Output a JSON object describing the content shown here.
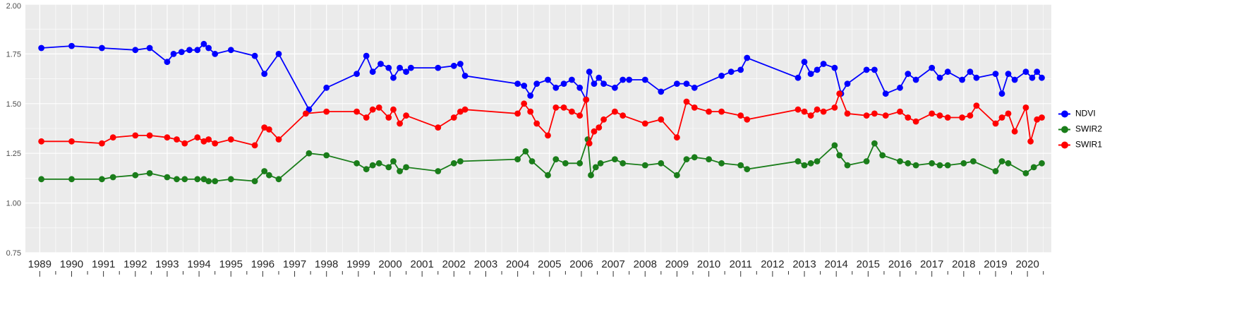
{
  "legend": {
    "items": [
      {
        "label": "NDVI",
        "color": "#0000FF"
      },
      {
        "label": "SWIR2",
        "color": "#1A7D1A"
      },
      {
        "label": "SWIR1",
        "color": "#FF0000"
      }
    ]
  },
  "chart_data": {
    "type": "line",
    "title": "",
    "xlabel": "",
    "ylabel": "",
    "x_ticks": [
      1989,
      1990,
      1991,
      1992,
      1993,
      1994,
      1995,
      1996,
      1997,
      1998,
      1999,
      2000,
      2001,
      2002,
      2003,
      2004,
      2005,
      2006,
      2007,
      2008,
      2009,
      2010,
      2011,
      2012,
      2013,
      2014,
      2015,
      2016,
      2017,
      2018,
      2019,
      2020
    ],
    "y_ticks": [
      0.75,
      1.0,
      1.25,
      1.5,
      1.75,
      2.0
    ],
    "ylim": [
      0.75,
      2.0
    ],
    "xlim": [
      1988.55,
      2020.75
    ],
    "grid": true,
    "legend_position": "right",
    "panel_color": "#EBEBEB",
    "grid_color": "#FFFFFF",
    "axis_text_color": "#4D4D4D",
    "x_label_color": "#262626",
    "series": [
      {
        "name": "NDVI",
        "color": "#0000FF",
        "points": [
          [
            1989.05,
            1.78
          ],
          [
            1990.0,
            1.79
          ],
          [
            1990.95,
            1.78
          ],
          [
            1992.0,
            1.77
          ],
          [
            1992.45,
            1.78
          ],
          [
            1993.0,
            1.71
          ],
          [
            1993.2,
            1.75
          ],
          [
            1993.45,
            1.76
          ],
          [
            1993.7,
            1.77
          ],
          [
            1993.95,
            1.77
          ],
          [
            1994.15,
            1.8
          ],
          [
            1994.3,
            1.78
          ],
          [
            1994.5,
            1.75
          ],
          [
            1995.0,
            1.77
          ],
          [
            1995.75,
            1.74
          ],
          [
            1996.05,
            1.65
          ],
          [
            1996.5,
            1.75
          ],
          [
            1997.45,
            1.47
          ],
          [
            1998.0,
            1.58
          ],
          [
            1998.95,
            1.65
          ],
          [
            1999.25,
            1.74
          ],
          [
            1999.45,
            1.66
          ],
          [
            1999.7,
            1.7
          ],
          [
            1999.95,
            1.68
          ],
          [
            2000.1,
            1.63
          ],
          [
            2000.3,
            1.68
          ],
          [
            2000.5,
            1.66
          ],
          [
            2000.65,
            1.68
          ],
          [
            2001.5,
            1.68
          ],
          [
            2002.0,
            1.69
          ],
          [
            2002.2,
            1.7
          ],
          [
            2002.35,
            1.64
          ],
          [
            2004.0,
            1.6
          ],
          [
            2004.2,
            1.59
          ],
          [
            2004.4,
            1.54
          ],
          [
            2004.6,
            1.6
          ],
          [
            2004.95,
            1.62
          ],
          [
            2005.2,
            1.58
          ],
          [
            2005.45,
            1.6
          ],
          [
            2005.7,
            1.62
          ],
          [
            2005.95,
            1.58
          ],
          [
            2006.15,
            1.52
          ],
          [
            2006.25,
            1.66
          ],
          [
            2006.4,
            1.6
          ],
          [
            2006.55,
            1.63
          ],
          [
            2006.7,
            1.6
          ],
          [
            2007.05,
            1.58
          ],
          [
            2007.3,
            1.62
          ],
          [
            2007.5,
            1.62
          ],
          [
            2008.0,
            1.62
          ],
          [
            2008.5,
            1.56
          ],
          [
            2009.0,
            1.6
          ],
          [
            2009.3,
            1.6
          ],
          [
            2009.55,
            1.58
          ],
          [
            2010.4,
            1.64
          ],
          [
            2010.7,
            1.66
          ],
          [
            2011.0,
            1.67
          ],
          [
            2011.2,
            1.73
          ],
          [
            2012.8,
            1.63
          ],
          [
            2013.0,
            1.71
          ],
          [
            2013.2,
            1.65
          ],
          [
            2013.4,
            1.67
          ],
          [
            2013.6,
            1.7
          ],
          [
            2013.95,
            1.68
          ],
          [
            2014.15,
            1.55
          ],
          [
            2014.35,
            1.6
          ],
          [
            2014.95,
            1.67
          ],
          [
            2015.2,
            1.67
          ],
          [
            2015.55,
            1.55
          ],
          [
            2016.0,
            1.58
          ],
          [
            2016.25,
            1.65
          ],
          [
            2016.5,
            1.62
          ],
          [
            2017.0,
            1.68
          ],
          [
            2017.25,
            1.63
          ],
          [
            2017.5,
            1.66
          ],
          [
            2017.95,
            1.62
          ],
          [
            2018.2,
            1.66
          ],
          [
            2018.4,
            1.63
          ],
          [
            2019.0,
            1.65
          ],
          [
            2019.2,
            1.55
          ],
          [
            2019.4,
            1.65
          ],
          [
            2019.6,
            1.62
          ],
          [
            2019.95,
            1.66
          ],
          [
            2020.15,
            1.63
          ],
          [
            2020.3,
            1.66
          ],
          [
            2020.45,
            1.63
          ]
        ]
      },
      {
        "name": "SWIR2",
        "color": "#1A7D1A",
        "points": [
          [
            1989.05,
            1.12
          ],
          [
            1990.0,
            1.12
          ],
          [
            1990.95,
            1.12
          ],
          [
            1991.3,
            1.13
          ],
          [
            1992.0,
            1.14
          ],
          [
            1992.45,
            1.15
          ],
          [
            1993.0,
            1.13
          ],
          [
            1993.3,
            1.12
          ],
          [
            1993.55,
            1.12
          ],
          [
            1993.95,
            1.12
          ],
          [
            1994.15,
            1.12
          ],
          [
            1994.3,
            1.11
          ],
          [
            1994.5,
            1.11
          ],
          [
            1995.0,
            1.12
          ],
          [
            1995.75,
            1.11
          ],
          [
            1996.05,
            1.16
          ],
          [
            1996.2,
            1.14
          ],
          [
            1996.5,
            1.12
          ],
          [
            1997.45,
            1.25
          ],
          [
            1998.0,
            1.24
          ],
          [
            1998.95,
            1.2
          ],
          [
            1999.25,
            1.17
          ],
          [
            1999.45,
            1.19
          ],
          [
            1999.65,
            1.2
          ],
          [
            1999.95,
            1.18
          ],
          [
            2000.1,
            1.21
          ],
          [
            2000.3,
            1.16
          ],
          [
            2000.5,
            1.18
          ],
          [
            2001.5,
            1.16
          ],
          [
            2002.0,
            1.2
          ],
          [
            2002.2,
            1.21
          ],
          [
            2004.0,
            1.22
          ],
          [
            2004.25,
            1.26
          ],
          [
            2004.45,
            1.21
          ],
          [
            2004.95,
            1.14
          ],
          [
            2005.2,
            1.22
          ],
          [
            2005.5,
            1.2
          ],
          [
            2005.95,
            1.2
          ],
          [
            2006.2,
            1.32
          ],
          [
            2006.3,
            1.14
          ],
          [
            2006.45,
            1.18
          ],
          [
            2006.6,
            1.2
          ],
          [
            2007.05,
            1.22
          ],
          [
            2007.3,
            1.2
          ],
          [
            2008.0,
            1.19
          ],
          [
            2008.5,
            1.2
          ],
          [
            2009.0,
            1.14
          ],
          [
            2009.3,
            1.22
          ],
          [
            2009.55,
            1.23
          ],
          [
            2010.0,
            1.22
          ],
          [
            2010.4,
            1.2
          ],
          [
            2011.0,
            1.19
          ],
          [
            2011.2,
            1.17
          ],
          [
            2012.8,
            1.21
          ],
          [
            2013.0,
            1.19
          ],
          [
            2013.2,
            1.2
          ],
          [
            2013.4,
            1.21
          ],
          [
            2013.95,
            1.29
          ],
          [
            2014.1,
            1.24
          ],
          [
            2014.35,
            1.19
          ],
          [
            2014.95,
            1.21
          ],
          [
            2015.2,
            1.3
          ],
          [
            2015.45,
            1.24
          ],
          [
            2016.0,
            1.21
          ],
          [
            2016.25,
            1.2
          ],
          [
            2016.5,
            1.19
          ],
          [
            2017.0,
            1.2
          ],
          [
            2017.25,
            1.19
          ],
          [
            2017.5,
            1.19
          ],
          [
            2018.0,
            1.2
          ],
          [
            2018.3,
            1.21
          ],
          [
            2019.0,
            1.16
          ],
          [
            2019.2,
            1.21
          ],
          [
            2019.4,
            1.2
          ],
          [
            2019.95,
            1.15
          ],
          [
            2020.2,
            1.18
          ],
          [
            2020.45,
            1.2
          ]
        ]
      },
      {
        "name": "SWIR1",
        "color": "#FF0000",
        "points": [
          [
            1989.05,
            1.31
          ],
          [
            1990.0,
            1.31
          ],
          [
            1990.95,
            1.3
          ],
          [
            1991.3,
            1.33
          ],
          [
            1992.0,
            1.34
          ],
          [
            1992.45,
            1.34
          ],
          [
            1993.0,
            1.33
          ],
          [
            1993.3,
            1.32
          ],
          [
            1993.55,
            1.3
          ],
          [
            1993.95,
            1.33
          ],
          [
            1994.15,
            1.31
          ],
          [
            1994.3,
            1.32
          ],
          [
            1994.5,
            1.3
          ],
          [
            1995.0,
            1.32
          ],
          [
            1995.75,
            1.29
          ],
          [
            1996.05,
            1.38
          ],
          [
            1996.2,
            1.37
          ],
          [
            1996.5,
            1.32
          ],
          [
            1997.35,
            1.45
          ],
          [
            1998.0,
            1.46
          ],
          [
            1998.95,
            1.46
          ],
          [
            1999.25,
            1.43
          ],
          [
            1999.45,
            1.47
          ],
          [
            1999.65,
            1.48
          ],
          [
            1999.95,
            1.43
          ],
          [
            2000.1,
            1.47
          ],
          [
            2000.3,
            1.4
          ],
          [
            2000.5,
            1.44
          ],
          [
            2001.5,
            1.38
          ],
          [
            2002.0,
            1.43
          ],
          [
            2002.2,
            1.46
          ],
          [
            2002.35,
            1.47
          ],
          [
            2004.0,
            1.45
          ],
          [
            2004.2,
            1.5
          ],
          [
            2004.4,
            1.46
          ],
          [
            2004.6,
            1.4
          ],
          [
            2004.95,
            1.34
          ],
          [
            2005.2,
            1.48
          ],
          [
            2005.45,
            1.48
          ],
          [
            2005.7,
            1.46
          ],
          [
            2005.95,
            1.44
          ],
          [
            2006.15,
            1.52
          ],
          [
            2006.25,
            1.3
          ],
          [
            2006.4,
            1.36
          ],
          [
            2006.55,
            1.38
          ],
          [
            2006.7,
            1.42
          ],
          [
            2007.05,
            1.46
          ],
          [
            2007.3,
            1.44
          ],
          [
            2008.0,
            1.4
          ],
          [
            2008.5,
            1.42
          ],
          [
            2009.0,
            1.33
          ],
          [
            2009.3,
            1.51
          ],
          [
            2009.55,
            1.48
          ],
          [
            2010.0,
            1.46
          ],
          [
            2010.4,
            1.46
          ],
          [
            2011.0,
            1.44
          ],
          [
            2011.2,
            1.42
          ],
          [
            2012.8,
            1.47
          ],
          [
            2013.0,
            1.46
          ],
          [
            2013.2,
            1.44
          ],
          [
            2013.4,
            1.47
          ],
          [
            2013.6,
            1.46
          ],
          [
            2013.95,
            1.48
          ],
          [
            2014.1,
            1.55
          ],
          [
            2014.35,
            1.45
          ],
          [
            2014.95,
            1.44
          ],
          [
            2015.2,
            1.45
          ],
          [
            2015.55,
            1.44
          ],
          [
            2016.0,
            1.46
          ],
          [
            2016.25,
            1.43
          ],
          [
            2016.5,
            1.41
          ],
          [
            2017.0,
            1.45
          ],
          [
            2017.25,
            1.44
          ],
          [
            2017.5,
            1.43
          ],
          [
            2017.95,
            1.43
          ],
          [
            2018.2,
            1.44
          ],
          [
            2018.4,
            1.49
          ],
          [
            2019.0,
            1.4
          ],
          [
            2019.2,
            1.43
          ],
          [
            2019.4,
            1.45
          ],
          [
            2019.6,
            1.36
          ],
          [
            2019.95,
            1.48
          ],
          [
            2020.1,
            1.31
          ],
          [
            2020.3,
            1.42
          ],
          [
            2020.45,
            1.43
          ]
        ]
      }
    ]
  }
}
